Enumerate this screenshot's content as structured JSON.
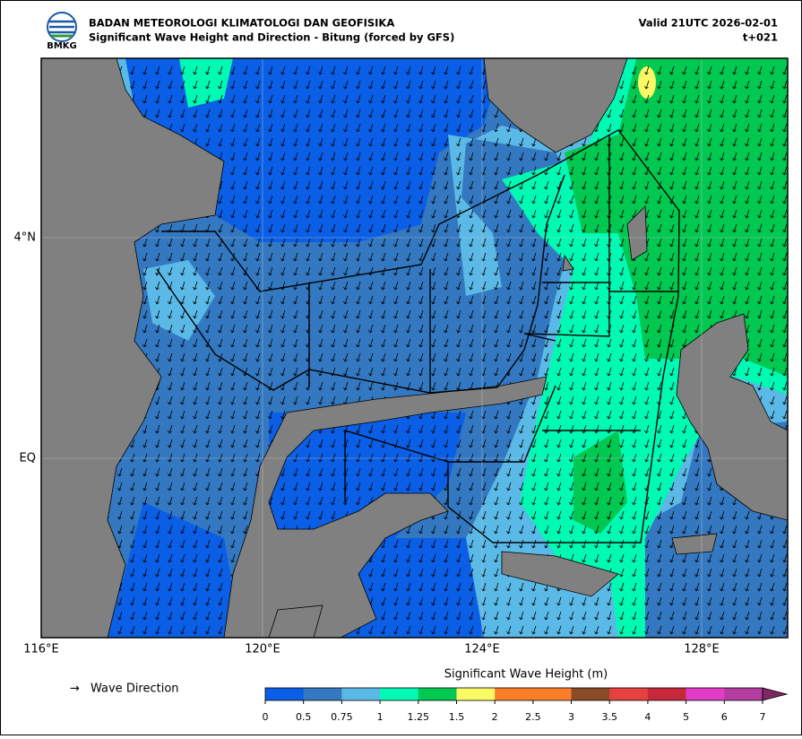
{
  "header": {
    "title_line1": "BADAN METEOROLOGI KLIMATOLOGI DAN GEOFISIKA",
    "title_line2": "Significant Wave Height and Direction - Bitung (forced by GFS)",
    "valid": "Valid 21UTC 2026-02-01",
    "step": "t+021",
    "logo_label": "BMKG"
  },
  "map": {
    "lon_labels": [
      "116°E",
      "120°E",
      "124°E",
      "128°E"
    ],
    "lat_labels": [
      "4°N",
      "EQ"
    ]
  },
  "legend": {
    "wave_direction": "Wave Direction"
  },
  "colorbar": {
    "title": "Significant Wave Height (m)",
    "ticks": [
      0,
      0.5,
      0.75,
      1,
      1.25,
      1.5,
      2,
      2.5,
      3,
      3.5,
      4,
      5,
      6,
      7
    ],
    "colors": [
      "#0a5fe6",
      "#3378c0",
      "#5ab9e6",
      "#00fab4",
      "#00c850",
      "#fafa64",
      "#fa7d28",
      "#fa7d28",
      "#8c4b28",
      "#e64141",
      "#c8283c",
      "#e13cc8",
      "#b43ca0"
    ],
    "extend_color": "#7d2864"
  }
}
